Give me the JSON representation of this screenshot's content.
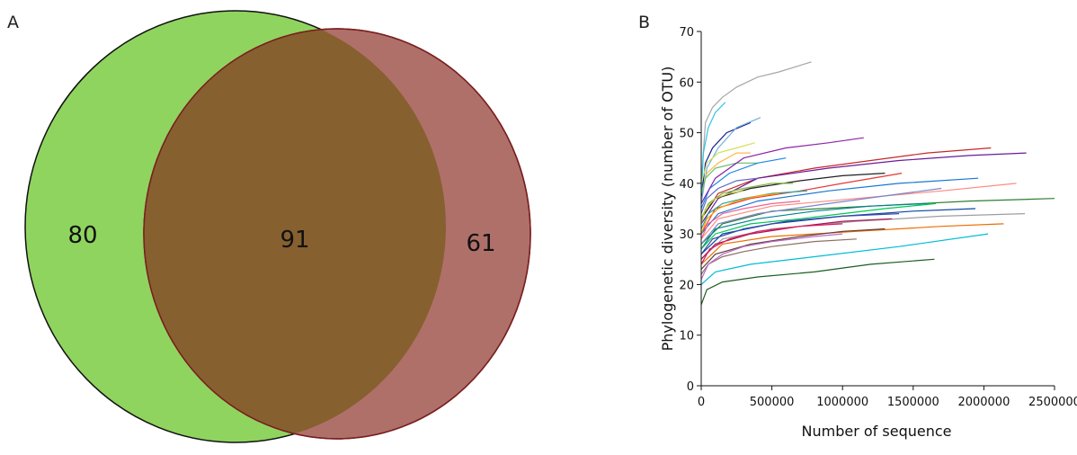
{
  "panels": {
    "a": {
      "letter": "A"
    },
    "b": {
      "letter": "B"
    }
  },
  "chart_data": [
    {
      "type": "venn",
      "sets": [
        {
          "color": "#8fd45f"
        },
        {
          "color": "#b0706a"
        }
      ],
      "intersection_color": "#876030",
      "regions": {
        "left_only": "80",
        "intersection": "91",
        "right_only": "61"
      }
    },
    {
      "type": "line",
      "xlabel": "Number of sequence",
      "ylabel": "Phylogenetic diversity (number of OTU)",
      "xlim": [
        0,
        2500000
      ],
      "ylim": [
        0,
        70
      ],
      "x_ticks": [
        0,
        500000,
        1000000,
        1500000,
        2000000,
        2500000
      ],
      "x_tick_labels": [
        "0",
        "500000",
        "1000000",
        "1500000",
        "2000000",
        "2500000"
      ],
      "y_ticks": [
        0,
        10,
        20,
        30,
        40,
        50,
        60,
        70
      ],
      "y_tick_labels": [
        "0",
        "10",
        "20",
        "30",
        "40",
        "50",
        "60",
        "70"
      ],
      "grid": false,
      "series": [
        {
          "color": "#a6a6a6",
          "x": [
            0,
            30000,
            80000,
            150000,
            250000,
            400000,
            550000,
            780000
          ],
          "y": [
            40,
            52,
            55,
            57,
            59,
            61,
            62,
            64
          ]
        },
        {
          "color": "#2ec4e6",
          "x": [
            0,
            15000,
            50000,
            100000,
            170000
          ],
          "y": [
            37,
            46,
            51,
            54,
            56
          ]
        },
        {
          "color": "#1a1a8c",
          "x": [
            0,
            30000,
            80000,
            180000,
            350000
          ],
          "y": [
            37,
            44,
            47,
            50,
            52
          ]
        },
        {
          "color": "#6fb3d9",
          "x": [
            0,
            40000,
            120000,
            250000,
            420000
          ],
          "y": [
            36,
            43,
            47,
            51,
            53
          ]
        },
        {
          "color": "#ffb74d",
          "x": [
            0,
            40000,
            120000,
            250000,
            350000
          ],
          "y": [
            38,
            42,
            44,
            46,
            46
          ]
        },
        {
          "color": "#d4e157",
          "x": [
            0,
            40000,
            120000,
            250000,
            380000
          ],
          "y": [
            40,
            44,
            46,
            47,
            48
          ]
        },
        {
          "color": "#66bb6a",
          "x": [
            0,
            30000,
            100000,
            250000,
            400000
          ],
          "y": [
            38,
            41,
            43,
            44,
            44
          ]
        },
        {
          "color": "#1e88e5",
          "x": [
            0,
            60000,
            200000,
            400000,
            600000
          ],
          "y": [
            35,
            39,
            42,
            44,
            45
          ]
        },
        {
          "color": "#8e24aa",
          "x": [
            0,
            100000,
            300000,
            600000,
            900000,
            1150000
          ],
          "y": [
            36,
            41,
            45,
            47,
            48,
            49
          ]
        },
        {
          "color": "#c62828",
          "x": [
            0,
            120000,
            400000,
            800000,
            1200000,
            1600000,
            2050000
          ],
          "y": [
            33,
            38,
            41,
            43,
            44.5,
            46,
            47
          ]
        },
        {
          "color": "#6a1b9a",
          "x": [
            0,
            120000,
            400000,
            900000,
            1400000,
            1900000,
            2300000
          ],
          "y": [
            32,
            37,
            41,
            43,
            44.5,
            45.5,
            46
          ]
        },
        {
          "color": "#212121",
          "x": [
            0,
            100000,
            350000,
            700000,
            1000000,
            1300000
          ],
          "y": [
            33,
            37,
            39,
            40.5,
            41.5,
            42
          ]
        },
        {
          "color": "#e53935",
          "x": [
            0,
            100000,
            350000,
            700000,
            1000000,
            1420000
          ],
          "y": [
            30,
            35,
            37,
            38.5,
            40,
            42
          ]
        },
        {
          "color": "#1976d2",
          "x": [
            0,
            120000,
            400000,
            900000,
            1400000,
            1960000
          ],
          "y": [
            30,
            34,
            36.5,
            38.5,
            40,
            41
          ]
        },
        {
          "color": "#ff8a80",
          "x": [
            0,
            120000,
            500000,
            1100000,
            1700000,
            2230000
          ],
          "y": [
            29,
            33,
            35.5,
            37,
            38.5,
            40
          ]
        },
        {
          "color": "#2e7d32",
          "x": [
            0,
            150000,
            500000,
            1200000,
            1900000,
            2500000
          ],
          "y": [
            28,
            32,
            34.5,
            35.5,
            36.5,
            37
          ]
        },
        {
          "color": "#7986cb",
          "x": [
            0,
            120000,
            400000,
            900000,
            1300000,
            1700000
          ],
          "y": [
            28,
            32,
            34,
            36,
            37.5,
            39
          ]
        },
        {
          "color": "#00838f",
          "x": [
            0,
            100000,
            400000,
            800000,
            1200000,
            1600000
          ],
          "y": [
            27,
            31,
            33,
            34.5,
            35.5,
            36
          ]
        },
        {
          "color": "#0d47a1",
          "x": [
            0,
            150000,
            500000,
            1000000,
            1500000,
            1940000
          ],
          "y": [
            26,
            30,
            32,
            33.5,
            34.5,
            35
          ]
        },
        {
          "color": "#9e9e9e",
          "x": [
            0,
            150000,
            500000,
            1100000,
            1700000,
            2290000
          ],
          "y": [
            25,
            29,
            31,
            32.5,
            33.5,
            34
          ]
        },
        {
          "color": "#ef6c00",
          "x": [
            0,
            150000,
            500000,
            1100000,
            1700000,
            2140000
          ],
          "y": [
            24,
            28,
            29.5,
            30.5,
            31.5,
            32
          ]
        },
        {
          "color": "#00c853",
          "x": [
            0,
            100000,
            350000,
            700000,
            1000000,
            1300000,
            1660000
          ],
          "y": [
            27,
            30,
            32,
            33,
            34,
            35,
            36
          ]
        },
        {
          "color": "#ad1457",
          "x": [
            0,
            100000,
            350000,
            700000,
            1000000,
            1350000
          ],
          "y": [
            25,
            28,
            30,
            31.5,
            32.5,
            33
          ]
        },
        {
          "color": "#5d4037",
          "x": [
            0,
            100000,
            350000,
            700000,
            1000000,
            1300000
          ],
          "y": [
            23,
            26,
            28,
            29.5,
            30.5,
            31
          ]
        },
        {
          "color": "#3949ab",
          "x": [
            0,
            80000,
            300000,
            600000,
            1000000,
            1400000
          ],
          "y": [
            26,
            29,
            31,
            32.5,
            33.5,
            34
          ]
        },
        {
          "color": "#d81b60",
          "x": [
            0,
            60000,
            200000,
            400000,
            700000,
            1000000
          ],
          "y": [
            24,
            27,
            29,
            30.5,
            31.5,
            32
          ]
        },
        {
          "color": "#00bcd4",
          "x": [
            0,
            100000,
            350000,
            800000,
            1400000,
            2030000
          ],
          "y": [
            20,
            22.5,
            24,
            25.5,
            27.5,
            30
          ]
        },
        {
          "color": "#1b5e20",
          "x": [
            0,
            40000,
            150000,
            400000,
            800000,
            1200000,
            1650000
          ],
          "y": [
            16,
            19,
            20.5,
            21.5,
            22.5,
            24,
            25
          ]
        },
        {
          "color": "#8d6e63",
          "x": [
            0,
            50000,
            150000,
            300000,
            500000,
            800000,
            1100000
          ],
          "y": [
            22,
            24,
            25.5,
            26.5,
            27.5,
            28.5,
            29
          ]
        },
        {
          "color": "#ba68c8",
          "x": [
            0,
            50000,
            150000,
            300000,
            500000,
            800000,
            1000000
          ],
          "y": [
            21,
            24,
            26,
            27.5,
            28.5,
            29.5,
            30
          ]
        },
        {
          "color": "#26a69a",
          "x": [
            0,
            50000,
            150000,
            300000,
            500000,
            750000
          ],
          "y": [
            31,
            34,
            36,
            37,
            38,
            38.5
          ]
        },
        {
          "color": "#f06292",
          "x": [
            0,
            50000,
            150000,
            300000,
            500000,
            700000
          ],
          "y": [
            29,
            32,
            34,
            35,
            36,
            36.5
          ]
        },
        {
          "color": "#7cb342",
          "x": [
            0,
            50000,
            150000,
            300000,
            500000,
            650000
          ],
          "y": [
            33,
            36,
            38,
            39,
            40,
            40
          ]
        },
        {
          "color": "#ffa000",
          "x": [
            0,
            40000,
            120000,
            250000,
            400000,
            550000
          ],
          "y": [
            30,
            33,
            35,
            36.5,
            37.5,
            38
          ]
        },
        {
          "color": "#5c6bc0",
          "x": [
            0,
            40000,
            120000,
            250000,
            400000
          ],
          "y": [
            34,
            37,
            39,
            40.5,
            41
          ]
        },
        {
          "color": "#c0ca33",
          "x": [
            0,
            30000,
            100000,
            200000,
            300000
          ],
          "y": [
            32,
            35,
            37,
            38,
            38.5
          ]
        }
      ]
    }
  ]
}
